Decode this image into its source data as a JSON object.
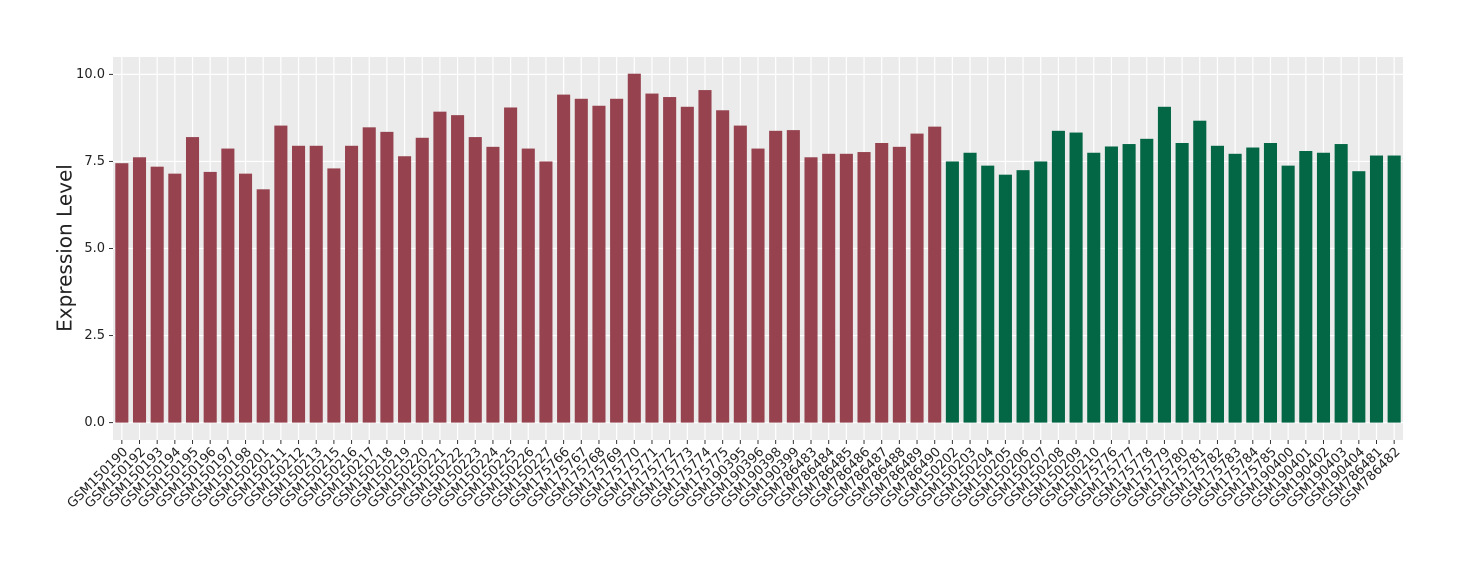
{
  "chart_data": {
    "type": "bar",
    "y_label": "Expression Level",
    "categories": [
      "GSM150190",
      "GSM150192",
      "GSM150193",
      "GSM150194",
      "GSM150195",
      "GSM150196",
      "GSM150197",
      "GSM150198",
      "GSM150201",
      "GSM150211",
      "GSM150212",
      "GSM150213",
      "GSM150215",
      "GSM150216",
      "GSM150217",
      "GSM150218",
      "GSM150219",
      "GSM150220",
      "GSM150221",
      "GSM150222",
      "GSM150223",
      "GSM150224",
      "GSM150225",
      "GSM150226",
      "GSM150227",
      "GSM175766",
      "GSM175767",
      "GSM175768",
      "GSM175769",
      "GSM175770",
      "GSM175771",
      "GSM175772",
      "GSM175773",
      "GSM175774",
      "GSM175775",
      "GSM190395",
      "GSM190396",
      "GSM190398",
      "GSM190399",
      "GSM786483",
      "GSM786484",
      "GSM786485",
      "GSM786486",
      "GSM786487",
      "GSM786488",
      "GSM786489",
      "GSM786490",
      "GSM150202",
      "GSM150203",
      "GSM150204",
      "GSM150205",
      "GSM150206",
      "GSM150207",
      "GSM150208",
      "GSM150209",
      "GSM150210",
      "GSM175776",
      "GSM175777",
      "GSM175778",
      "GSM175779",
      "GSM175780",
      "GSM175781",
      "GSM175782",
      "GSM175783",
      "GSM175784",
      "GSM175785",
      "GSM190400",
      "GSM190401",
      "GSM190402",
      "GSM190403",
      "GSM190404",
      "GSM786481",
      "GSM786482"
    ],
    "values": [
      7.45,
      7.62,
      7.35,
      7.15,
      8.2,
      7.2,
      7.87,
      7.15,
      6.7,
      8.53,
      7.95,
      7.95,
      7.3,
      7.95,
      8.48,
      8.35,
      7.65,
      8.18,
      8.93,
      8.83,
      8.2,
      7.92,
      9.05,
      7.87,
      7.5,
      9.42,
      9.3,
      9.1,
      9.3,
      10.02,
      9.45,
      9.35,
      9.07,
      9.55,
      8.97,
      8.53,
      7.87,
      8.38,
      8.4,
      7.62,
      7.72,
      7.72,
      7.77,
      8.03,
      7.92,
      8.3,
      8.5,
      7.5,
      7.75,
      7.38,
      7.12,
      7.25,
      7.5,
      8.38,
      8.33,
      7.75,
      7.93,
      8.0,
      8.15,
      9.07,
      8.03,
      8.67,
      7.95,
      7.72,
      7.9,
      8.03,
      7.38,
      7.8,
      7.75,
      8.0,
      7.22,
      7.67,
      7.67
    ],
    "colors": [
      "#96434f",
      "#96434f",
      "#96434f",
      "#96434f",
      "#96434f",
      "#96434f",
      "#96434f",
      "#96434f",
      "#96434f",
      "#96434f",
      "#96434f",
      "#96434f",
      "#96434f",
      "#96434f",
      "#96434f",
      "#96434f",
      "#96434f",
      "#96434f",
      "#96434f",
      "#96434f",
      "#96434f",
      "#96434f",
      "#96434f",
      "#96434f",
      "#96434f",
      "#96434f",
      "#96434f",
      "#96434f",
      "#96434f",
      "#96434f",
      "#96434f",
      "#96434f",
      "#96434f",
      "#96434f",
      "#96434f",
      "#96434f",
      "#96434f",
      "#96434f",
      "#96434f",
      "#96434f",
      "#96434f",
      "#96434f",
      "#96434f",
      "#96434f",
      "#96434f",
      "#96434f",
      "#96434f",
      "#036644",
      "#036644",
      "#036644",
      "#036644",
      "#036644",
      "#036644",
      "#036644",
      "#036644",
      "#036644",
      "#036644",
      "#036644",
      "#036644",
      "#036644",
      "#036644",
      "#036644",
      "#036644",
      "#036644",
      "#036644",
      "#036644",
      "#036644",
      "#036644",
      "#036644",
      "#036644",
      "#036644",
      "#036644",
      "#036644"
    ],
    "ylim": [
      -0.5,
      10.5
    ],
    "yticks": [
      {
        "value": 0,
        "label": "0.0"
      },
      {
        "value": 2.5,
        "label": "2.5"
      },
      {
        "value": 5,
        "label": "5.0"
      },
      {
        "value": 7.5,
        "label": "7.5"
      },
      {
        "value": 10,
        "label": "10.0"
      }
    ],
    "grid": true
  }
}
